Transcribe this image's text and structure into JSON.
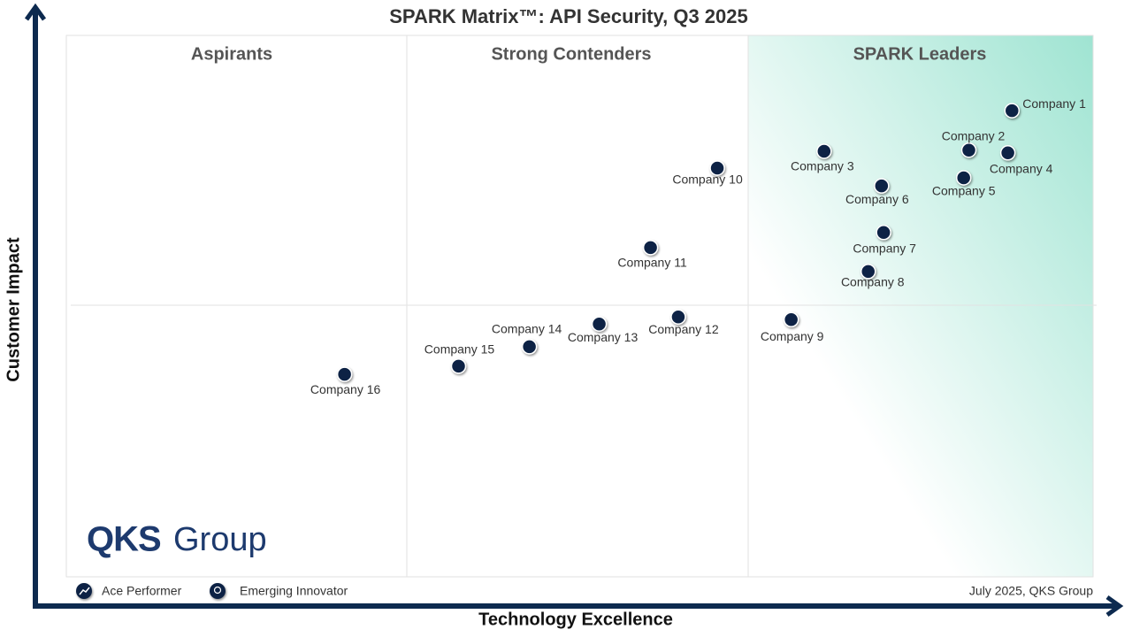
{
  "chart_data": {
    "type": "scatter",
    "title": "SPARK Matrix™: API Security, Q3 2025",
    "x_label": "Technology Excellence",
    "y_label": "Customer Impact",
    "quadrants": [
      "Aspirants",
      "Strong Contenders",
      "SPARK Leaders"
    ],
    "point_labels": [
      "Company 1",
      "Company 2",
      "Company 3",
      "Company 4",
      "Company 5",
      "Company 6",
      "Company 7",
      "Company 8",
      "Company 9",
      "Company 10",
      "Company 11",
      "Company 12",
      "Company 13",
      "Company 14",
      "Company 15",
      "Company 16"
    ],
    "x": [
      92.1,
      87.9,
      73.8,
      91.7,
      87.4,
      79.4,
      79.6,
      78.1,
      70.6,
      63.4,
      56.9,
      59.6,
      51.9,
      45.1,
      38.2,
      27.1
    ],
    "values": [
      86.1,
      78.8,
      78.6,
      78.3,
      73.7,
      72.2,
      63.6,
      56.4,
      47.5,
      75.5,
      60.8,
      48.0,
      46.7,
      42.5,
      38.9,
      37.4
    ],
    "color": "#0b2244",
    "xlim": [
      0,
      100
    ],
    "ylim": [
      0,
      100
    ],
    "legend": [
      "Ace Performer",
      "Emerging Innovator"
    ],
    "note": "July 2025, QKS Group",
    "logo": [
      "QKS",
      "Group"
    ]
  }
}
